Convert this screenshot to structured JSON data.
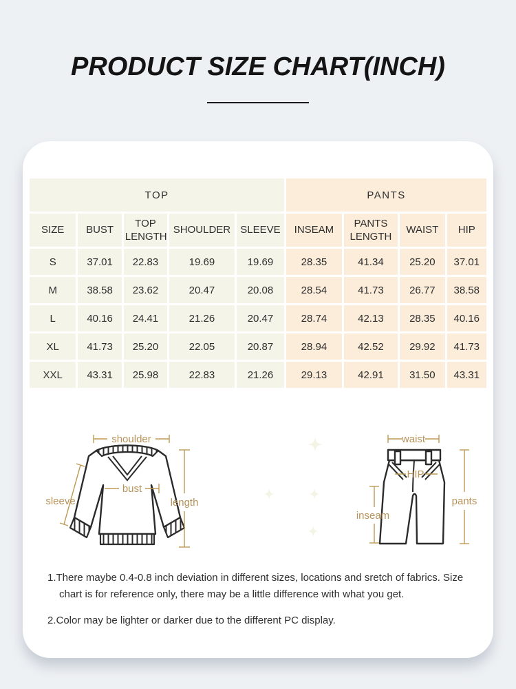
{
  "title": "PRODUCT SIZE CHART(INCH)",
  "table": {
    "groups": [
      {
        "label": "TOP",
        "span": 5
      },
      {
        "label": "PANTS",
        "span": 4
      }
    ],
    "columns": [
      "SIZE",
      "BUST",
      "TOP LENGTH",
      "SHOULDER",
      "SLEEVE",
      "INSEAM",
      "PANTS LENGTH",
      "WAIST",
      "HIP"
    ],
    "rows": [
      [
        "S",
        "37.01",
        "22.83",
        "19.69",
        "19.69",
        "28.35",
        "41.34",
        "25.20",
        "37.01"
      ],
      [
        "M",
        "38.58",
        "23.62",
        "20.47",
        "20.08",
        "28.54",
        "41.73",
        "26.77",
        "38.58"
      ],
      [
        "L",
        "40.16",
        "24.41",
        "21.26",
        "20.47",
        "28.74",
        "42.13",
        "28.35",
        "40.16"
      ],
      [
        "XL",
        "41.73",
        "25.20",
        "22.05",
        "20.87",
        "28.94",
        "42.52",
        "29.92",
        "41.73"
      ],
      [
        "XXL",
        "43.31",
        "25.98",
        "22.83",
        "21.26",
        "29.13",
        "42.91",
        "31.50",
        "43.31"
      ]
    ]
  },
  "sweater_diagram": {
    "shoulder": "shoulder",
    "bust": "bust",
    "sleeve": "sleeve",
    "length": "length"
  },
  "pants_diagram": {
    "waist": "waist",
    "hip": "HIP",
    "inseam": "inseam",
    "pants": "pants"
  },
  "notes": [
    "1.There maybe 0.4-0.8 inch deviation in different sizes, locations and sretch of fabrics. Size chart is for reference only, there may be a little difference with what you get.",
    "2.Color may be lighter or darker due to the different PC display."
  ],
  "colors": {
    "page_background": "#eef1f4",
    "card": "#ffffff",
    "top_section": "#f4f5e8",
    "pants_section": "#fcedda",
    "annotation": "#bf9a55",
    "garment_outline": "#2b2b2b",
    "title_text": "#141414",
    "body_text": "#2f2f2f"
  }
}
